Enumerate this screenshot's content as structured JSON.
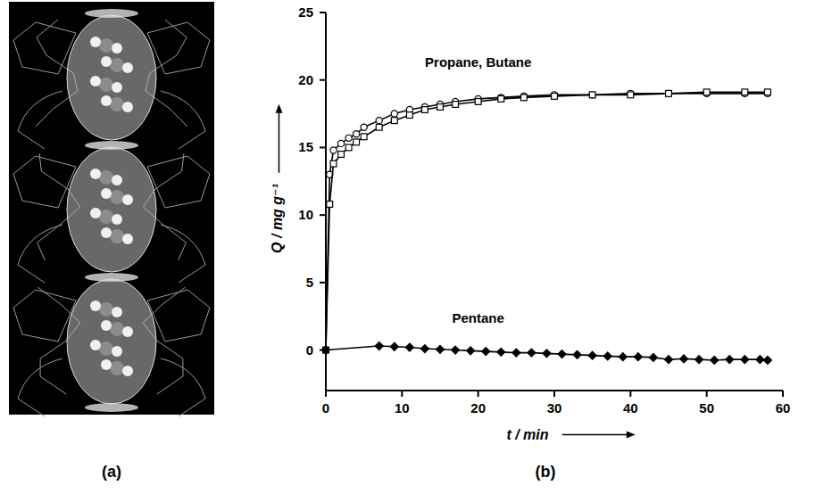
{
  "panel_labels": [
    "(a)",
    "(b)"
  ],
  "chart_data": {
    "type": "line",
    "x_label": "t / min",
    "y_label": "Q / mg g⁻¹",
    "annotations": [
      "Propane, Butane",
      "Pentane"
    ],
    "xlim": [
      0,
      60
    ],
    "xticks": [
      0,
      10,
      20,
      30,
      40,
      50,
      60
    ],
    "ylim": [
      -3,
      25
    ],
    "yticks": [
      0,
      5,
      10,
      15,
      20,
      25
    ],
    "grid": false,
    "series": [
      {
        "color": "#000000",
        "marker": "circle",
        "line_style": "solid",
        "x": [
          0,
          0.5,
          1,
          2,
          3,
          4,
          5,
          7,
          9,
          11,
          13,
          15,
          17,
          20,
          23,
          26,
          30,
          35,
          40,
          45,
          50,
          55,
          58
        ],
        "values": [
          0,
          13,
          14.8,
          15.3,
          15.7,
          16.0,
          16.5,
          17.0,
          17.5,
          17.8,
          18.0,
          18.2,
          18.4,
          18.6,
          18.7,
          18.8,
          18.9,
          18.9,
          19.0,
          19.0,
          19.0,
          19.0,
          19.0
        ]
      },
      {
        "color": "#000000",
        "marker": "square",
        "line_style": "solid",
        "x": [
          0,
          0.5,
          1,
          2,
          3,
          4,
          5,
          7,
          9,
          11,
          13,
          15,
          17,
          20,
          23,
          26,
          30,
          35,
          40,
          45,
          50,
          55,
          58
        ],
        "values": [
          0,
          10.8,
          13.8,
          14.5,
          15.0,
          15.4,
          15.8,
          16.5,
          17.0,
          17.4,
          17.8,
          18.0,
          18.2,
          18.4,
          18.6,
          18.7,
          18.8,
          18.9,
          18.9,
          19.0,
          19.1,
          19.1,
          19.1
        ]
      },
      {
        "color": "#000000",
        "marker": "diamond",
        "line_style": "solid",
        "x": [
          0,
          7,
          9,
          11,
          13,
          15,
          17,
          19,
          21,
          23,
          25,
          27,
          29,
          31,
          33,
          35,
          37,
          39,
          41,
          43,
          45,
          47,
          49,
          51,
          53,
          55,
          57,
          58
        ],
        "values": [
          0,
          0.3,
          0.25,
          0.2,
          0.1,
          0.05,
          0,
          -0.05,
          -0.1,
          -0.15,
          -0.2,
          -0.2,
          -0.25,
          -0.3,
          -0.35,
          -0.4,
          -0.45,
          -0.5,
          -0.5,
          -0.55,
          -0.7,
          -0.65,
          -0.7,
          -0.75,
          -0.7,
          -0.7,
          -0.7,
          -0.75
        ]
      }
    ]
  }
}
